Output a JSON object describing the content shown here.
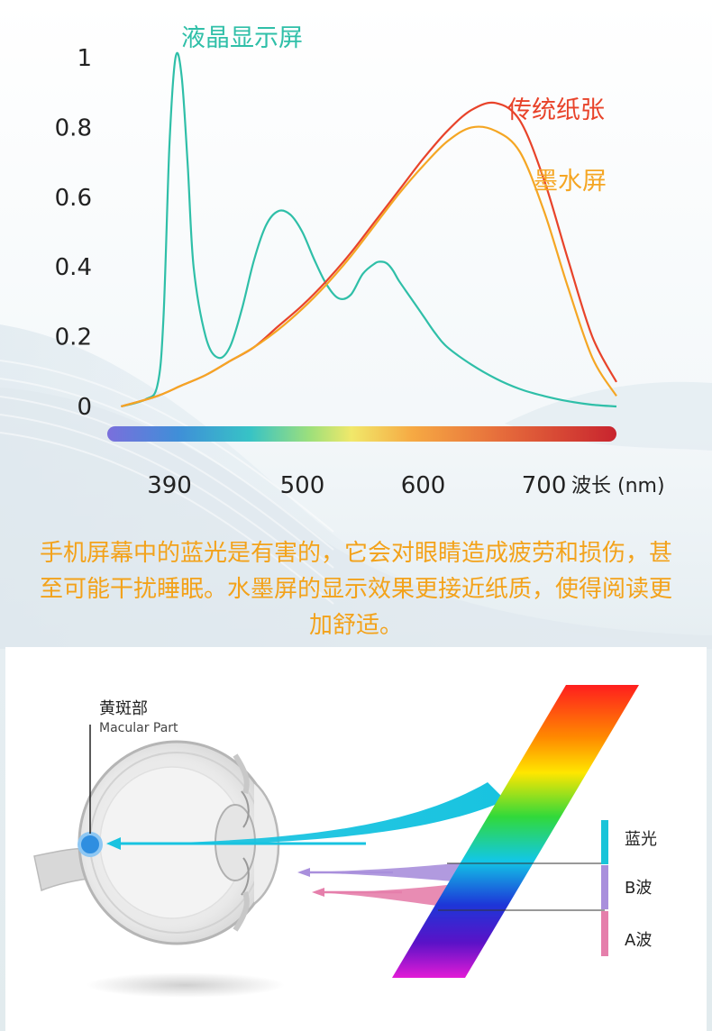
{
  "chart_data": {
    "type": "line",
    "title": "",
    "xlabel": "波长 (nm)",
    "ylabel": "",
    "xlim": [
      340,
      760
    ],
    "ylim": [
      0,
      1
    ],
    "x_ticks": [
      "390",
      "500",
      "600",
      "700"
    ],
    "y_ticks": [
      "1",
      "0.8",
      "0.6",
      "0.4",
      "0.2",
      "0"
    ],
    "grid": false,
    "series": [
      {
        "name": "液晶显示屏",
        "color": "#2fbfa8",
        "x": [
          350,
          370,
          380,
          385,
          390,
          395,
          400,
          405,
          410,
          420,
          430,
          440,
          450,
          460,
          470,
          480,
          490,
          500,
          510,
          520,
          530,
          540,
          550,
          560,
          565,
          570,
          575,
          580,
          590,
          600,
          610,
          620,
          640,
          660,
          680,
          700,
          720,
          740,
          760
        ],
        "y": [
          0.0,
          0.02,
          0.06,
          0.25,
          0.75,
          1.0,
          0.95,
          0.7,
          0.4,
          0.2,
          0.14,
          0.17,
          0.28,
          0.42,
          0.52,
          0.56,
          0.55,
          0.5,
          0.42,
          0.35,
          0.31,
          0.32,
          0.38,
          0.41,
          0.415,
          0.41,
          0.39,
          0.36,
          0.31,
          0.26,
          0.21,
          0.17,
          0.12,
          0.08,
          0.05,
          0.03,
          0.015,
          0.005,
          0.0
        ]
      },
      {
        "name": "传统纸张",
        "color": "#e8432a",
        "x": [
          350,
          380,
          400,
          420,
          440,
          460,
          480,
          500,
          520,
          540,
          560,
          580,
          600,
          620,
          640,
          660,
          680,
          700,
          720,
          740,
          760
        ],
        "y": [
          0.0,
          0.03,
          0.06,
          0.09,
          0.13,
          0.17,
          0.23,
          0.29,
          0.36,
          0.44,
          0.53,
          0.62,
          0.71,
          0.79,
          0.85,
          0.87,
          0.82,
          0.65,
          0.42,
          0.2,
          0.07
        ]
      },
      {
        "name": "墨水屏",
        "color": "#f5a623",
        "x": [
          350,
          380,
          400,
          420,
          440,
          460,
          480,
          500,
          520,
          540,
          560,
          580,
          600,
          620,
          640,
          660,
          680,
          700,
          720,
          740,
          760
        ],
        "y": [
          0.0,
          0.03,
          0.06,
          0.09,
          0.13,
          0.17,
          0.22,
          0.28,
          0.35,
          0.43,
          0.52,
          0.61,
          0.69,
          0.76,
          0.8,
          0.79,
          0.73,
          0.56,
          0.34,
          0.14,
          0.03
        ]
      }
    ],
    "spectrum_bar": true
  },
  "caption": "手机屏幕中的蓝光是有害的，它会对眼睛造成疲劳和损伤，甚至可能干扰睡眠。水墨屏的显示效果更接近纸质，使得阅读更加舒适。",
  "eye_diagram": {
    "macula_label_cn": "黄斑部",
    "macula_label_en": "Macular Part",
    "legend": [
      {
        "label": "蓝光",
        "color": "#19c4d9"
      },
      {
        "label": "B波",
        "color": "#a98fdc"
      },
      {
        "label": "A波",
        "color": "#e57fab"
      }
    ]
  }
}
